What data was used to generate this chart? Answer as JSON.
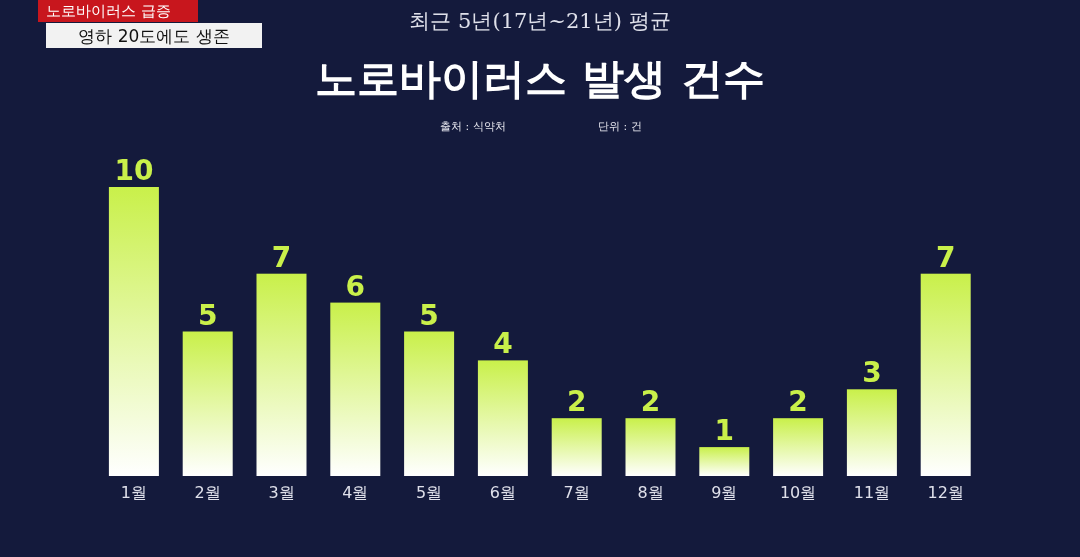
{
  "chart_data": {
    "type": "bar",
    "title": "노로바이러스 발생 건수",
    "subtitle": "최근 5년(17년~21년) 평균",
    "annotations": [
      "노로바이러스 급증",
      "영하 20도에도 생존",
      "출처 : 식약처",
      "단위 : 건"
    ],
    "categories": [
      "1월",
      "2월",
      "3월",
      "4월",
      "5월",
      "6월",
      "7월",
      "8월",
      "9월",
      "10월",
      "11월",
      "12월"
    ],
    "values": [
      10,
      5,
      7,
      6,
      5,
      4,
      2,
      2,
      1,
      2,
      3,
      7
    ],
    "color": "#c9f04a",
    "data_labels": true
  }
}
